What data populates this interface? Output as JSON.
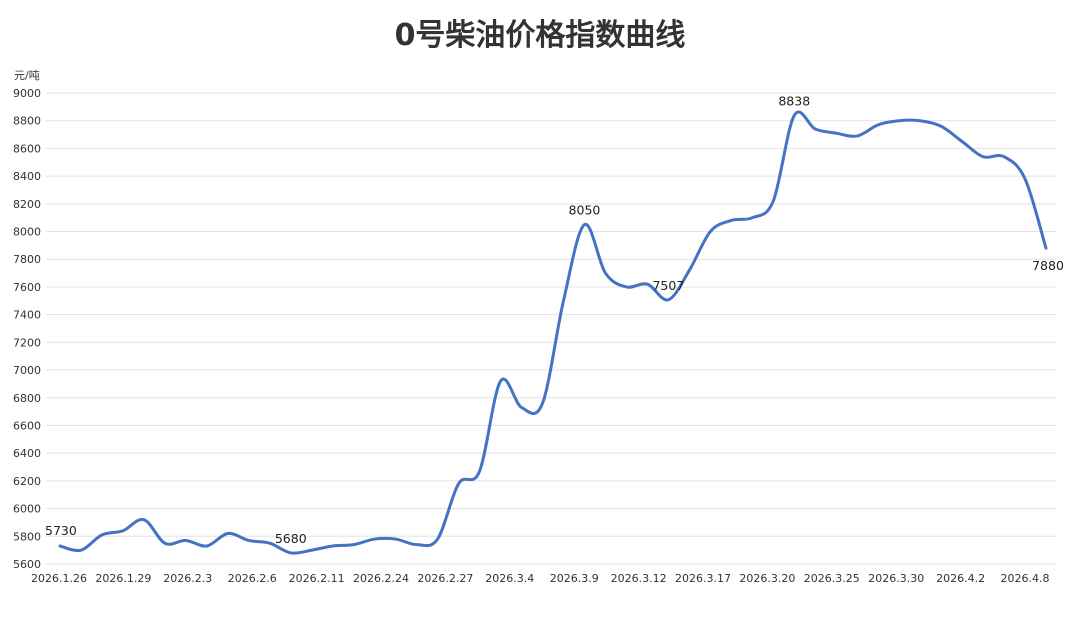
{
  "chart_data": {
    "type": "line",
    "title": "0号柴油价格指数曲线",
    "ylabel": "元/吨",
    "ylim": [
      5600,
      9000
    ],
    "yticks": [
      5600,
      5800,
      6000,
      6200,
      6400,
      6600,
      6800,
      7000,
      7200,
      7400,
      7600,
      7800,
      8000,
      8200,
      8400,
      8600,
      8800,
      9000
    ],
    "xtick_labels": [
      "2026.1.26",
      "2026.1.29",
      "2026.2.3",
      "2026.2.6",
      "2026.2.11",
      "2026.2.24",
      "2026.2.27",
      "2026.3.4",
      "2026.3.9",
      "2026.3.12",
      "2026.3.17",
      "2026.3.20",
      "2026.3.25",
      "2026.3.30",
      "2026.4.2",
      "2026.4.8"
    ],
    "grid": true,
    "line_color": "#4472C4",
    "series": [
      {
        "values": [
          5730,
          5700,
          5810,
          5840,
          5920,
          5750,
          5770,
          5730,
          5820,
          5770,
          5750,
          5680,
          5700,
          5730,
          5740,
          5780,
          5780,
          5740,
          5780,
          6180,
          6270,
          6920,
          6730,
          6760,
          7500,
          8050,
          7700,
          7600,
          7620,
          7507,
          7720,
          8000,
          8080,
          8100,
          8220,
          8838,
          8740,
          8710,
          8690,
          8770,
          8800,
          8800,
          8760,
          8650,
          8540,
          8540,
          8380,
          7880
        ]
      }
    ],
    "data_labels": [
      {
        "index": 0,
        "text": "5730"
      },
      {
        "index": 11,
        "text": "5680"
      },
      {
        "index": 25,
        "text": "8050"
      },
      {
        "index": 29,
        "text": "7507"
      },
      {
        "index": 35,
        "text": "8838"
      },
      {
        "index": 47,
        "text": "7880"
      }
    ]
  }
}
